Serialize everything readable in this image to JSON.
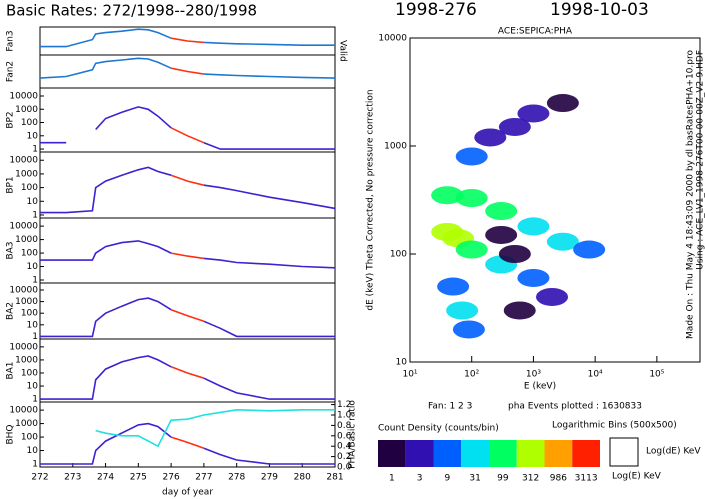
{
  "title": "Basic Rates: 272/1998--280/1998",
  "doy_label": "1998-276",
  "date_label": "1998-10-03",
  "valid_label": "Valid",
  "made_on": "Made On : Thu May  4 18:43:09 2000  by dl basRatesPHA+10.pro",
  "using": "Using : ACE_LV1_1998-276T00-00-00Z_V2-9.HDF",
  "fan_label": "Fan: 1 2 3",
  "pha_events": "pha Events plotted : 1630833",
  "bins_label": "Logarithmic Bins (500x500)",
  "colorbar": {
    "title": "Count Density (counts/bin)",
    "labels": [
      1,
      3,
      9,
      31,
      99,
      312,
      986,
      3113
    ],
    "colors": [
      "#200040",
      "#3010b0",
      "#0060ff",
      "#00e0f0",
      "#00ff60",
      "#b0ff00",
      "#ffa000",
      "#ff2000"
    ]
  },
  "axes_legend": {
    "y": "Log(dE) KeV",
    "x": "Log(E) KeV"
  },
  "chart_data": [
    {
      "type": "line",
      "ylabel": "Fan3",
      "ylim": [
        0,
        1
      ],
      "xlim": [
        272,
        281
      ],
      "x": [
        272,
        272.8,
        273.6,
        273.7,
        274,
        274.5,
        275,
        275.3,
        275.6,
        276,
        276.5,
        277,
        277.5,
        278,
        279,
        280,
        281
      ],
      "series": [
        {
          "color": "#1e78d2",
          "values": [
            0.3,
            0.3,
            0.55,
            0.75,
            0.8,
            0.85,
            0.92,
            0.9,
            0.8,
            0.6,
            null,
            0.45,
            0.42,
            0.4,
            0.38,
            0.35,
            0.35
          ]
        },
        {
          "color": "#ff3010",
          "values": [
            null,
            null,
            null,
            null,
            null,
            null,
            null,
            null,
            null,
            0.6,
            0.5,
            0.45,
            null,
            null,
            null,
            null,
            null
          ]
        }
      ]
    },
    {
      "type": "line",
      "ylabel": "Fan2",
      "ylim": [
        0,
        1
      ],
      "xlim": [
        272,
        281
      ],
      "x": [
        272,
        272.8,
        273.6,
        273.7,
        274,
        274.5,
        275,
        275.3,
        275.6,
        276,
        276.5,
        277,
        277.5,
        278,
        279,
        280,
        281
      ],
      "series": [
        {
          "color": "#1e78d2",
          "values": [
            0.3,
            0.35,
            0.55,
            0.75,
            0.8,
            0.85,
            0.9,
            0.88,
            0.78,
            0.6,
            null,
            0.42,
            0.4,
            0.38,
            0.35,
            0.32,
            0.3
          ]
        },
        {
          "color": "#ff3010",
          "values": [
            null,
            null,
            null,
            null,
            null,
            null,
            null,
            null,
            null,
            0.6,
            0.5,
            0.42,
            null,
            null,
            null,
            null,
            null
          ]
        }
      ]
    },
    {
      "type": "line",
      "ylabel": "BP2",
      "log_y": true,
      "ylim": [
        0.6,
        40000
      ],
      "yticks": [
        1,
        10,
        100,
        1000,
        10000
      ],
      "xlim": [
        272,
        281
      ],
      "x": [
        272,
        272.8,
        273.6,
        273.7,
        274,
        274.5,
        275,
        275.3,
        275.6,
        276,
        276.5,
        277,
        277.5,
        278,
        279,
        280,
        281
      ],
      "series": [
        {
          "color": "#4020d0",
          "values": [
            3,
            3,
            null,
            30,
            200,
            600,
            1500,
            1000,
            300,
            40,
            null,
            3,
            1,
            1,
            1,
            1,
            1
          ]
        },
        {
          "color": "#ff3010",
          "values": [
            null,
            null,
            null,
            null,
            null,
            null,
            null,
            null,
            null,
            40,
            10,
            3,
            null,
            null,
            null,
            null,
            null
          ]
        }
      ]
    },
    {
      "type": "line",
      "ylabel": "BP1",
      "log_y": true,
      "ylim": [
        0.6,
        40000
      ],
      "yticks": [
        1,
        10,
        100,
        1000,
        10000
      ],
      "xlim": [
        272,
        281
      ],
      "x": [
        272,
        272.8,
        273.6,
        273.7,
        274,
        274.5,
        275,
        275.3,
        275.6,
        276,
        276.5,
        277,
        277.5,
        278,
        279,
        280,
        281
      ],
      "series": [
        {
          "color": "#4020d0",
          "values": [
            1.5,
            1.5,
            2,
            100,
            300,
            800,
            2000,
            3000,
            1500,
            800,
            null,
            150,
            100,
            60,
            20,
            8,
            3
          ]
        },
        {
          "color": "#ff3010",
          "values": [
            null,
            null,
            null,
            null,
            null,
            null,
            null,
            null,
            null,
            800,
            300,
            150,
            null,
            null,
            null,
            null,
            null
          ]
        }
      ]
    },
    {
      "type": "line",
      "ylabel": "BA3",
      "log_y": true,
      "ylim": [
        0.6,
        40000
      ],
      "yticks": [
        1,
        10,
        100,
        1000,
        10000
      ],
      "xlim": [
        272,
        281
      ],
      "x": [
        272,
        272.8,
        273.6,
        273.7,
        274,
        274.5,
        275,
        275.3,
        275.6,
        276,
        276.5,
        277,
        277.5,
        278,
        279,
        280,
        281
      ],
      "series": [
        {
          "color": "#4020d0",
          "values": [
            30,
            30,
            30,
            100,
            300,
            600,
            800,
            500,
            300,
            100,
            null,
            40,
            30,
            20,
            15,
            10,
            8
          ]
        },
        {
          "color": "#ff3010",
          "values": [
            null,
            null,
            null,
            null,
            null,
            null,
            null,
            null,
            null,
            100,
            60,
            40,
            null,
            null,
            null,
            null,
            null
          ]
        }
      ]
    },
    {
      "type": "line",
      "ylabel": "BA2",
      "log_y": true,
      "ylim": [
        0.6,
        40000
      ],
      "yticks": [
        1,
        10,
        100,
        1000,
        10000
      ],
      "xlim": [
        272,
        281
      ],
      "x": [
        272,
        272.8,
        273.6,
        273.7,
        274,
        274.5,
        275,
        275.3,
        275.6,
        276,
        276.5,
        277,
        277.5,
        278,
        279,
        280,
        281
      ],
      "series": [
        {
          "color": "#4020d0",
          "values": [
            1,
            1,
            1,
            20,
            100,
            400,
            1500,
            2000,
            1000,
            200,
            null,
            20,
            5,
            1,
            1,
            1,
            1
          ]
        },
        {
          "color": "#ff3010",
          "values": [
            null,
            null,
            null,
            null,
            null,
            null,
            null,
            null,
            null,
            200,
            60,
            20,
            null,
            null,
            null,
            null,
            null
          ]
        }
      ]
    },
    {
      "type": "line",
      "ylabel": "BA1",
      "log_y": true,
      "ylim": [
        0.6,
        40000
      ],
      "yticks": [
        1,
        10,
        100,
        1000,
        10000
      ],
      "xlim": [
        272,
        281
      ],
      "x": [
        272,
        272.8,
        273.6,
        273.7,
        274,
        274.5,
        275,
        275.3,
        275.6,
        276,
        276.5,
        277,
        277.5,
        278,
        279,
        280,
        281
      ],
      "series": [
        {
          "color": "#4020d0",
          "values": [
            1,
            1,
            1,
            30,
            200,
            700,
            1500,
            2000,
            1000,
            300,
            null,
            40,
            10,
            3,
            1,
            1,
            1
          ]
        },
        {
          "color": "#ff3010",
          "values": [
            null,
            null,
            null,
            null,
            null,
            null,
            null,
            null,
            null,
            300,
            100,
            40,
            null,
            null,
            null,
            null,
            null
          ]
        }
      ]
    },
    {
      "type": "line",
      "ylabel": "BHQ",
      "log_y": true,
      "ylim": [
        0.6,
        40000
      ],
      "yticks": [
        1,
        10,
        100,
        1000,
        10000
      ],
      "xlim": [
        272,
        281
      ],
      "xticks": [
        272,
        273,
        274,
        275,
        276,
        277,
        278,
        279,
        280,
        281
      ],
      "xlabel": "day of year",
      "y2label": "PHA/Basic ratio",
      "y2lim": [
        0,
        1.25
      ],
      "y2ticks": [
        {
          "value": 0,
          "label": "0.0"
        },
        0.2,
        0.4,
        0.6,
        0.8,
        {
          "value": 1,
          "label": "1.0"
        },
        1.2
      ],
      "x": [
        272,
        272.8,
        273.6,
        273.7,
        274,
        274.5,
        275,
        275.3,
        275.6,
        276,
        276.5,
        277,
        277.5,
        278,
        279,
        280,
        281
      ],
      "series": [
        {
          "color": "#4020d0",
          "values": [
            1,
            1,
            1,
            10,
            50,
            200,
            800,
            1000,
            600,
            100,
            null,
            15,
            5,
            2,
            1,
            1,
            1
          ]
        },
        {
          "color": "#ff3010",
          "values": [
            null,
            null,
            null,
            null,
            null,
            null,
            null,
            null,
            null,
            100,
            40,
            15,
            null,
            null,
            null,
            null,
            null
          ]
        },
        {
          "color": "#20e0e0",
          "axis": "y2",
          "values": [
            null,
            null,
            null,
            0.7,
            0.65,
            0.6,
            0.6,
            0.5,
            0.4,
            0.9,
            0.92,
            1.0,
            1.05,
            1.1,
            1.08,
            1.1,
            1.1
          ]
        }
      ]
    },
    {
      "type": "heatmap",
      "title": "ACE:SEPICA:PHA",
      "xlabel": "E (keV)",
      "ylabel": "dE (keV) Theta Corrected, No pressure correction",
      "log_x": true,
      "log_y": true,
      "xlim": [
        10,
        500000
      ],
      "ylim": [
        10,
        10000
      ],
      "xticks": [
        {
          "value": 10,
          "label": "10¹"
        },
        {
          "value": 100,
          "label": "10²"
        },
        {
          "value": 1000,
          "label": "10³"
        },
        {
          "value": 10000,
          "label": "10⁴"
        },
        {
          "value": 100000,
          "label": "10⁵"
        }
      ],
      "yticks": [
        10,
        100,
        1000,
        10000
      ],
      "x": [
        100,
        200,
        500,
        1000,
        3000,
        40,
        100,
        300,
        1000,
        3000,
        8000,
        40,
        60,
        100,
        300,
        1000,
        2000,
        300,
        500,
        600,
        50,
        70,
        90
      ],
      "y": [
        800,
        1200,
        1500,
        2000,
        2500,
        350,
        330,
        250,
        180,
        130,
        110,
        160,
        140,
        110,
        80,
        60,
        40,
        150,
        100,
        30,
        50,
        30,
        20
      ],
      "values": [
        9,
        3,
        3,
        3,
        1,
        99,
        99,
        99,
        31,
        31,
        9,
        312,
        312,
        99,
        31,
        9,
        3,
        1,
        1,
        1,
        9,
        31,
        9
      ]
    }
  ]
}
